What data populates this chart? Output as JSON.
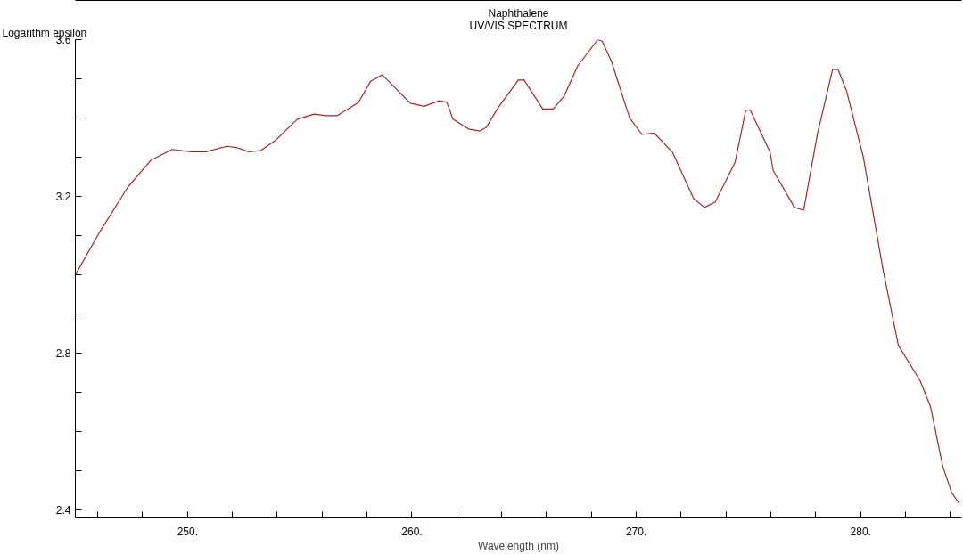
{
  "chart_data": {
    "type": "line",
    "title": "Naphthalene",
    "subtitle": "UV/VIS SPECTRUM",
    "xlabel": "Wavelength (nm)",
    "ylabel": "Logarithm epsilon",
    "x": [
      245.0,
      246.05,
      247.34,
      248.36,
      249.31,
      250.13,
      250.81,
      251.76,
      252.17,
      252.72,
      253.26,
      253.94,
      254.89,
      255.64,
      256.19,
      256.66,
      257.62,
      258.16,
      258.68,
      259.39,
      259.93,
      260.54,
      261.22,
      261.56,
      261.83,
      262.52,
      263.04,
      263.31,
      263.85,
      264.74,
      265.0,
      265.83,
      266.3,
      266.78,
      267.39,
      268.28,
      268.48,
      268.89,
      269.7,
      270.25,
      270.79,
      271.61,
      272.56,
      273.04,
      273.52,
      274.4,
      274.88,
      275.08,
      275.96,
      276.1,
      277.05,
      277.46,
      278.07,
      278.75,
      278.99,
      279.37,
      280.12,
      281.0,
      281.68,
      282.64,
      283.11,
      283.66,
      284.06,
      284.4
    ],
    "series": [
      {
        "color": "#a02828",
        "values": [
          3.0,
          3.106,
          3.224,
          3.292,
          3.32,
          3.314,
          3.314,
          3.328,
          3.325,
          3.314,
          3.317,
          3.344,
          3.397,
          3.41,
          3.406,
          3.406,
          3.44,
          3.494,
          3.51,
          3.469,
          3.438,
          3.43,
          3.444,
          3.44,
          3.397,
          3.372,
          3.367,
          3.376,
          3.427,
          3.497,
          3.497,
          3.423,
          3.423,
          3.456,
          3.533,
          3.6,
          3.596,
          3.545,
          3.401,
          3.358,
          3.362,
          3.313,
          3.194,
          3.172,
          3.186,
          3.287,
          3.42,
          3.42,
          3.313,
          3.266,
          3.172,
          3.165,
          3.359,
          3.524,
          3.524,
          3.469,
          3.3,
          3.012,
          2.82,
          2.731,
          2.664,
          2.511,
          2.444,
          2.416
        ]
      }
    ],
    "xlim": [
      245,
      284.5
    ],
    "ylim": [
      2.38,
      3.6
    ],
    "xticks": [
      {
        "value": 246,
        "label": null
      },
      {
        "value": 248,
        "label": null
      },
      {
        "value": 250,
        "label": "250."
      },
      {
        "value": 252,
        "label": null
      },
      {
        "value": 254,
        "label": null
      },
      {
        "value": 256,
        "label": null
      },
      {
        "value": 258,
        "label": null
      },
      {
        "value": 260,
        "label": "260."
      },
      {
        "value": 262,
        "label": null
      },
      {
        "value": 264,
        "label": null
      },
      {
        "value": 266,
        "label": null
      },
      {
        "value": 268,
        "label": null
      },
      {
        "value": 270,
        "label": "270."
      },
      {
        "value": 272,
        "label": null
      },
      {
        "value": 274,
        "label": null
      },
      {
        "value": 276,
        "label": null
      },
      {
        "value": 278,
        "label": null
      },
      {
        "value": 280,
        "label": "280."
      },
      {
        "value": 282,
        "label": null
      },
      {
        "value": 284,
        "label": null
      }
    ],
    "yticks": [
      2.4,
      {
        "value": 2.5,
        "label": null
      },
      {
        "value": 2.6,
        "label": null
      },
      {
        "value": 2.7,
        "label": null
      },
      2.8,
      {
        "value": 2.9,
        "label": null
      },
      {
        "value": 3.0,
        "label": null
      },
      {
        "value": 3.1,
        "label": null
      },
      3.2,
      {
        "value": 3.3,
        "label": null
      },
      {
        "value": 3.4,
        "label": null
      },
      {
        "value": 3.5,
        "label": null
      },
      3.6
    ],
    "grid": false,
    "marker": "none",
    "line_style": "solid"
  }
}
